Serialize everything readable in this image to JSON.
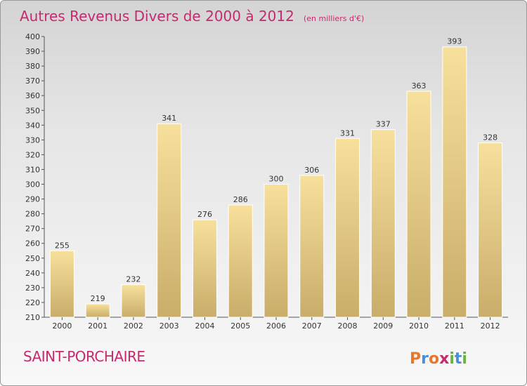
{
  "title": "Autres Revenus Divers de 2000 à 2012",
  "subtitle": "(en milliers d'€)",
  "commune": "SAINT-PORCHAIRE",
  "logo": {
    "letters": [
      "P",
      "r",
      "o",
      "x",
      "i",
      "t",
      "i"
    ],
    "colors": [
      "#e8772e",
      "#4a8fd6",
      "#e8772e",
      "#c8286e",
      "#6ab23c",
      "#4a8fd6",
      "#6ab23c"
    ]
  },
  "colors": {
    "title": "#c8286e",
    "bar_light": "#f7e09c",
    "bar_dark": "#c9ad6a"
  },
  "chart_data": {
    "type": "bar",
    "categories": [
      "2000",
      "2001",
      "2002",
      "2003",
      "2004",
      "2005",
      "2006",
      "2007",
      "2008",
      "2009",
      "2010",
      "2011",
      "2012"
    ],
    "values": [
      255,
      219,
      232,
      341,
      276,
      286,
      300,
      306,
      331,
      337,
      363,
      393,
      328
    ],
    "ylim": [
      210,
      400
    ],
    "yticks": [
      210,
      220,
      230,
      240,
      250,
      260,
      270,
      280,
      290,
      300,
      310,
      320,
      330,
      340,
      350,
      360,
      370,
      380,
      390,
      400
    ],
    "grid": false,
    "legend": "none"
  }
}
